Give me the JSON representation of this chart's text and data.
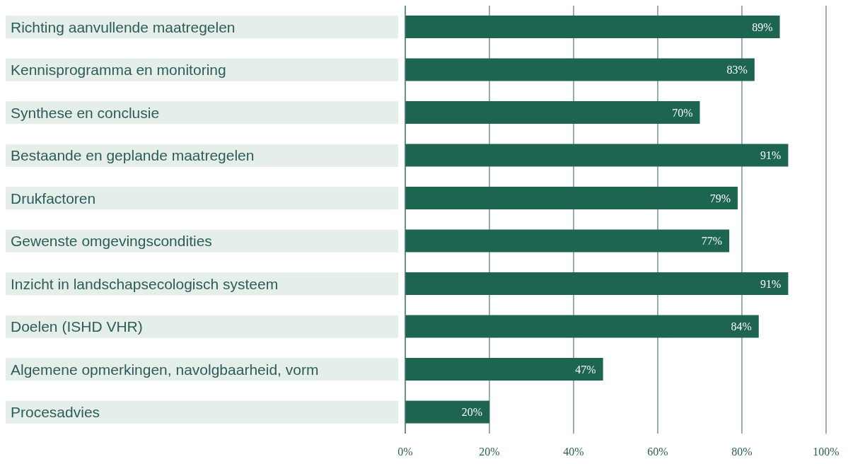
{
  "chart_data": {
    "type": "bar",
    "orientation": "horizontal",
    "categories": [
      "Richting aanvullende maatregelen",
      "Kennisprogramma en monitoring",
      "Synthese en conclusie",
      "Bestaande en geplande maatregelen",
      "Drukfactoren",
      "Gewenste omgevingscondities",
      "Inzicht in landschapsecologisch systeem",
      "Doelen (ISHD VHR)",
      "Algemene opmerkingen, navolgbaarheid, vorm",
      "Procesadvies"
    ],
    "values": [
      89,
      83,
      70,
      91,
      79,
      77,
      91,
      84,
      47,
      20
    ],
    "value_labels": [
      "89%",
      "83%",
      "70%",
      "91%",
      "79%",
      "77%",
      "91%",
      "84%",
      "47%",
      "20%"
    ],
    "color": "#1d6550",
    "xlim": [
      0,
      100
    ],
    "xticks": [
      {
        "value": 0,
        "label": "0%"
      },
      {
        "value": 20,
        "label": "20%"
      },
      {
        "value": 40,
        "label": "40%"
      },
      {
        "value": 60,
        "label": "60%"
      },
      {
        "value": 80,
        "label": "80%"
      },
      {
        "value": 100,
        "label": "100%"
      }
    ],
    "grid": "x",
    "legend": false
  }
}
